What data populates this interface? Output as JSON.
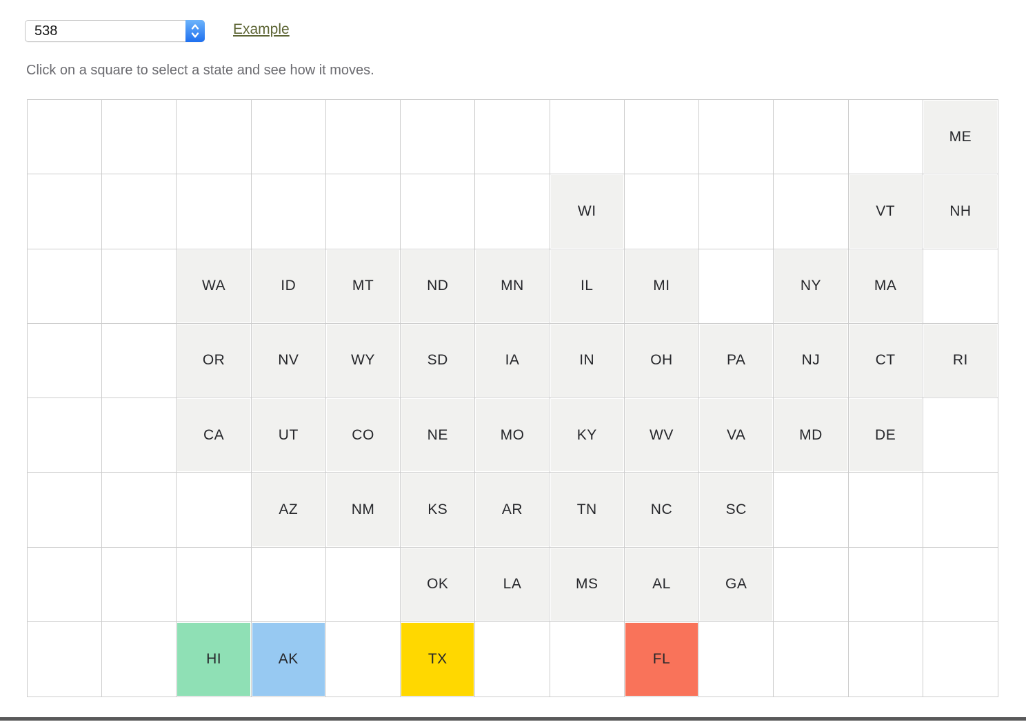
{
  "header": {
    "select": {
      "value": "538"
    },
    "example_link": "Example"
  },
  "instruction": "Click on a square to select a state and see how it moves.",
  "colors": {
    "link": "#5c6433",
    "instruction_text": "#6b6b70",
    "grid_line": "#cccccc",
    "tile_default": "#f1f1ef",
    "tile_label": "#26272b",
    "stepper_blue_top": "#6cb3fb",
    "stepper_blue_bottom": "#1f70ef",
    "bottom_bar": "#59595a",
    "highlight_hi": "#8fe0b5",
    "highlight_ak": "#97c9f2",
    "highlight_tx": "#ffd800",
    "highlight_fl": "#f9735a"
  },
  "grid": {
    "columns": 13,
    "rows": 8,
    "states": [
      {
        "label": "ME",
        "row": 0,
        "col": 12
      },
      {
        "label": "WI",
        "row": 1,
        "col": 7
      },
      {
        "label": "VT",
        "row": 1,
        "col": 11
      },
      {
        "label": "NH",
        "row": 1,
        "col": 12
      },
      {
        "label": "WA",
        "row": 2,
        "col": 2
      },
      {
        "label": "ID",
        "row": 2,
        "col": 3
      },
      {
        "label": "MT",
        "row": 2,
        "col": 4
      },
      {
        "label": "ND",
        "row": 2,
        "col": 5
      },
      {
        "label": "MN",
        "row": 2,
        "col": 6
      },
      {
        "label": "IL",
        "row": 2,
        "col": 7
      },
      {
        "label": "MI",
        "row": 2,
        "col": 8
      },
      {
        "label": "NY",
        "row": 2,
        "col": 10
      },
      {
        "label": "MA",
        "row": 2,
        "col": 11
      },
      {
        "label": "OR",
        "row": 3,
        "col": 2
      },
      {
        "label": "NV",
        "row": 3,
        "col": 3
      },
      {
        "label": "WY",
        "row": 3,
        "col": 4
      },
      {
        "label": "SD",
        "row": 3,
        "col": 5
      },
      {
        "label": "IA",
        "row": 3,
        "col": 6
      },
      {
        "label": "IN",
        "row": 3,
        "col": 7
      },
      {
        "label": "OH",
        "row": 3,
        "col": 8
      },
      {
        "label": "PA",
        "row": 3,
        "col": 9
      },
      {
        "label": "NJ",
        "row": 3,
        "col": 10
      },
      {
        "label": "CT",
        "row": 3,
        "col": 11
      },
      {
        "label": "RI",
        "row": 3,
        "col": 12
      },
      {
        "label": "CA",
        "row": 4,
        "col": 2
      },
      {
        "label": "UT",
        "row": 4,
        "col": 3
      },
      {
        "label": "CO",
        "row": 4,
        "col": 4
      },
      {
        "label": "NE",
        "row": 4,
        "col": 5
      },
      {
        "label": "MO",
        "row": 4,
        "col": 6
      },
      {
        "label": "KY",
        "row": 4,
        "col": 7
      },
      {
        "label": "WV",
        "row": 4,
        "col": 8
      },
      {
        "label": "VA",
        "row": 4,
        "col": 9
      },
      {
        "label": "MD",
        "row": 4,
        "col": 10
      },
      {
        "label": "DE",
        "row": 4,
        "col": 11
      },
      {
        "label": "AZ",
        "row": 5,
        "col": 3
      },
      {
        "label": "NM",
        "row": 5,
        "col": 4
      },
      {
        "label": "KS",
        "row": 5,
        "col": 5
      },
      {
        "label": "AR",
        "row": 5,
        "col": 6
      },
      {
        "label": "TN",
        "row": 5,
        "col": 7
      },
      {
        "label": "NC",
        "row": 5,
        "col": 8
      },
      {
        "label": "SC",
        "row": 5,
        "col": 9
      },
      {
        "label": "OK",
        "row": 6,
        "col": 5
      },
      {
        "label": "LA",
        "row": 6,
        "col": 6
      },
      {
        "label": "MS",
        "row": 6,
        "col": 7
      },
      {
        "label": "AL",
        "row": 6,
        "col": 8
      },
      {
        "label": "GA",
        "row": 6,
        "col": 9
      },
      {
        "label": "HI",
        "row": 7,
        "col": 2,
        "color": "#8fe0b5"
      },
      {
        "label": "AK",
        "row": 7,
        "col": 3,
        "color": "#97c9f2"
      },
      {
        "label": "TX",
        "row": 7,
        "col": 5,
        "color": "#ffd800"
      },
      {
        "label": "FL",
        "row": 7,
        "col": 8,
        "color": "#f9735a"
      }
    ]
  }
}
